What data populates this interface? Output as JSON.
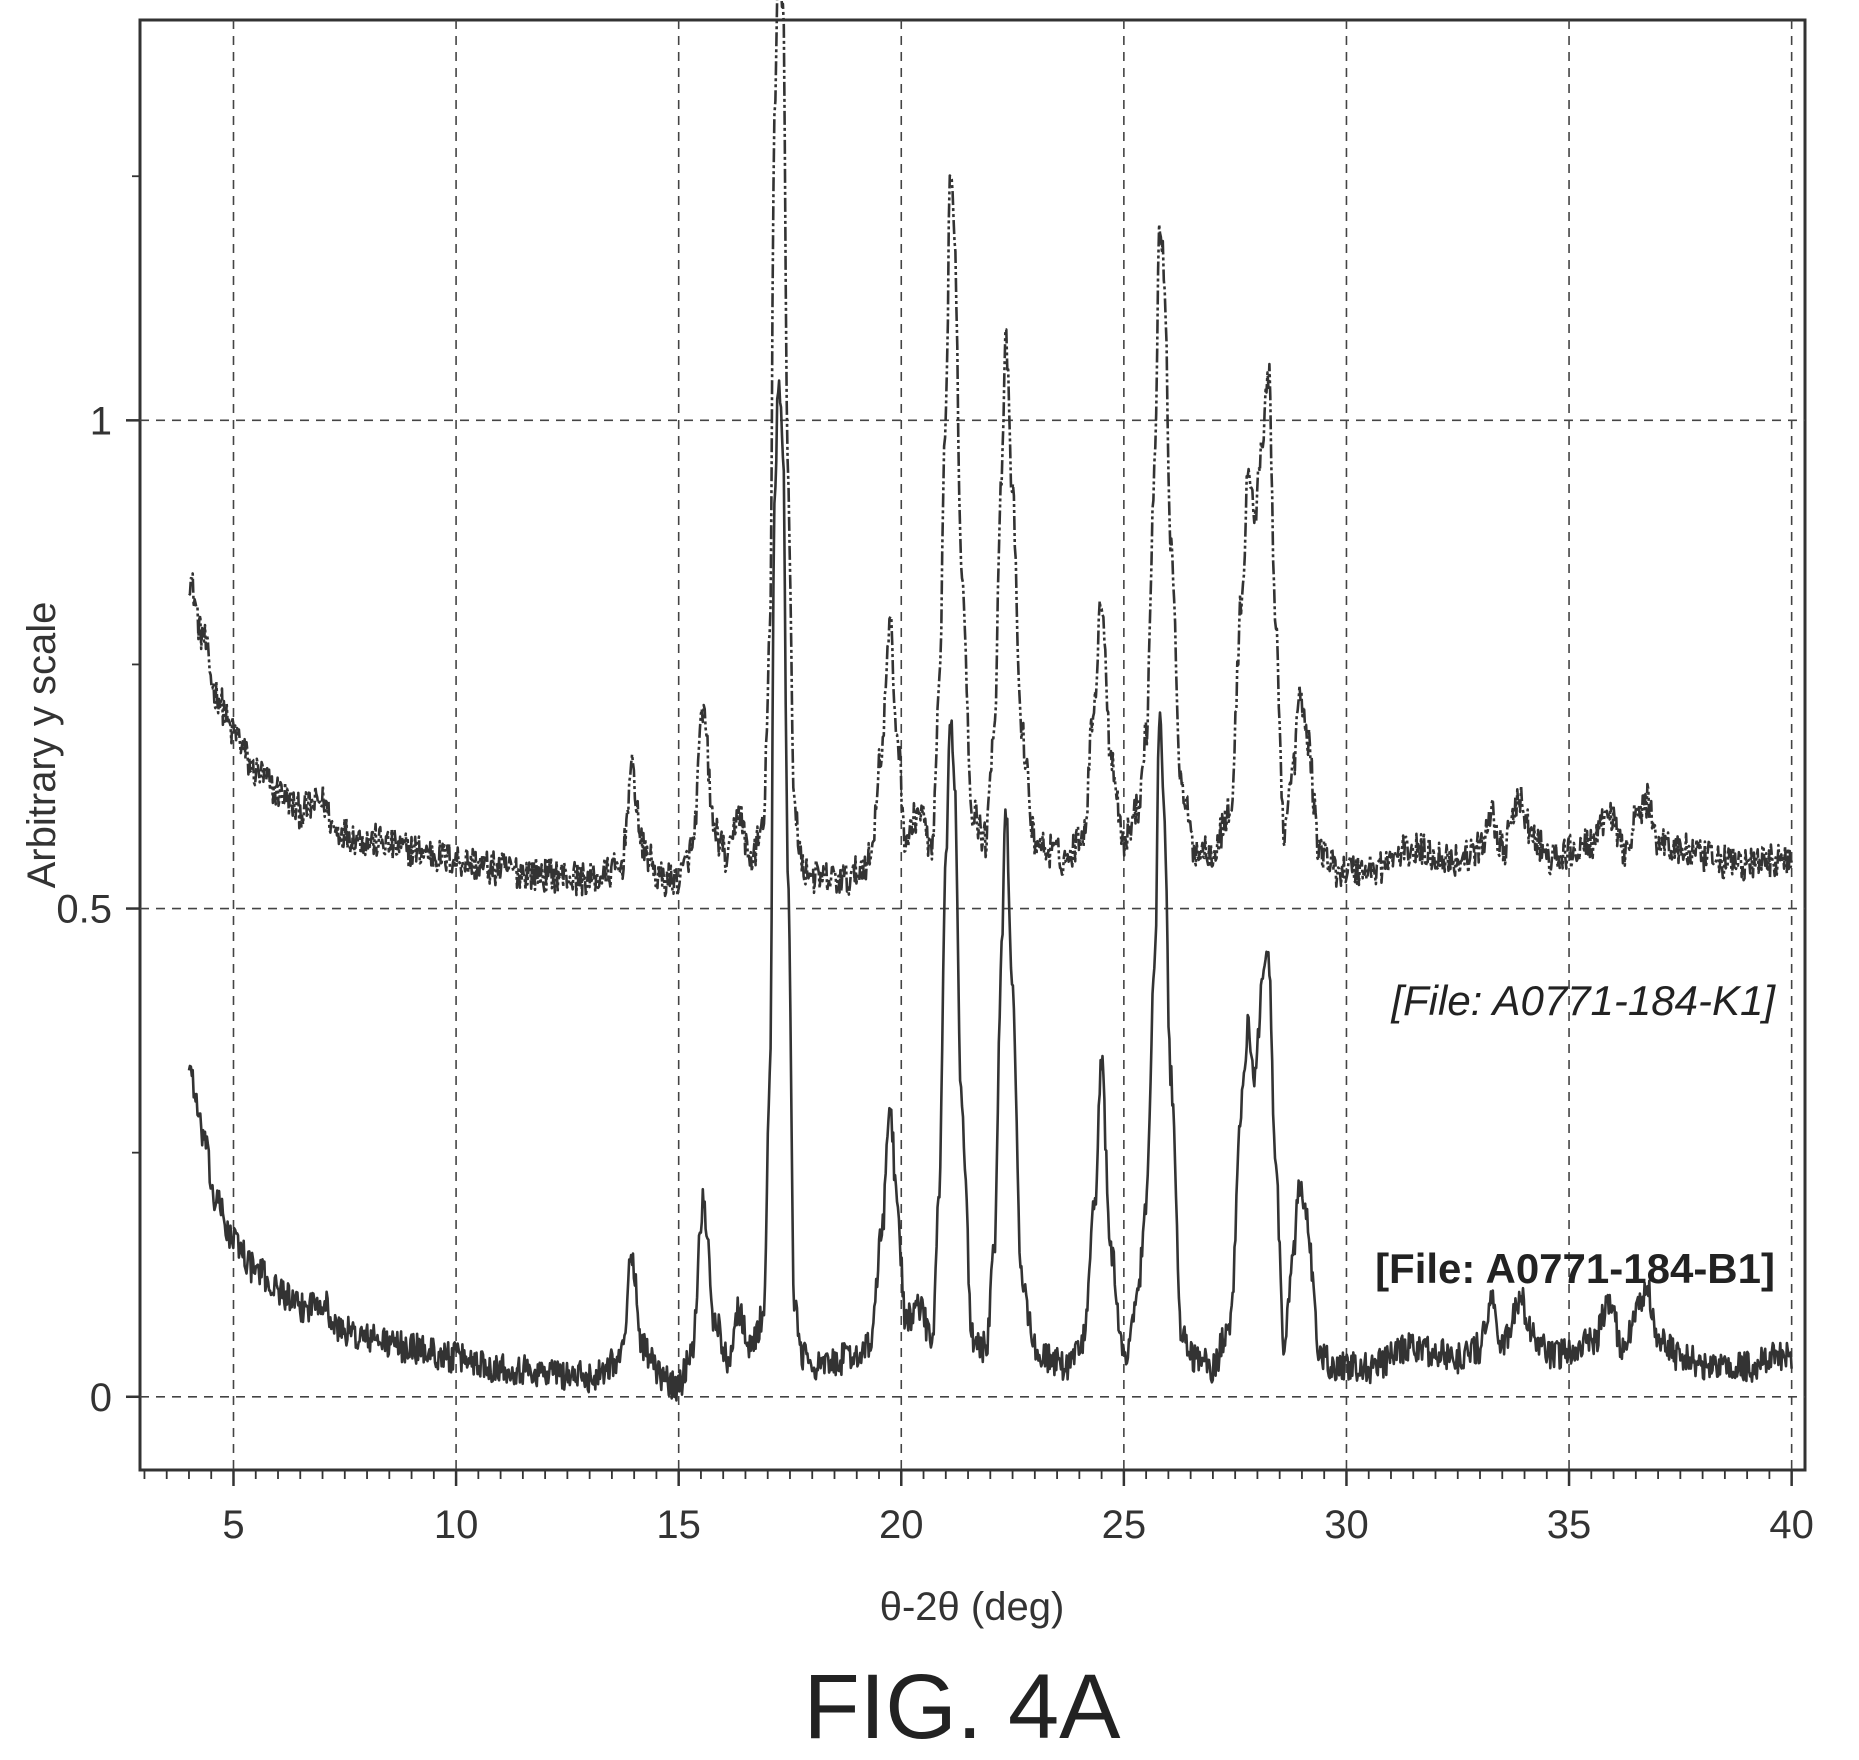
{
  "figure_title": "FIG. 4A",
  "chart_data": {
    "type": "line",
    "title": "",
    "xlabel": "θ-2θ (deg)",
    "ylabel": "Arbitrary y scale",
    "xlim": [
      2.9,
      40.3
    ],
    "ylim": [
      -0.075,
      1.41
    ],
    "x_ticks": [
      5,
      10,
      15,
      20,
      25,
      30,
      35,
      40
    ],
    "y_ticks": [
      0,
      0.5,
      1
    ],
    "x_minor_step": 0.5,
    "y_minor_ticks": [
      0.25,
      0.75,
      1.25
    ],
    "grid": "dashed",
    "colors": {
      "series": "#333333",
      "grid": "#444444",
      "axis": "#333333"
    },
    "series": [
      {
        "name": "[File: A0771-184-K1]",
        "line_style": "dash-dot-dot",
        "label_style": "italic",
        "baseline_offset": 0.5,
        "noise_amplitude": 0.018,
        "x": [
          4.0,
          4.3,
          4.6,
          5.0,
          5.5,
          6.0,
          6.5,
          7.0,
          7.3,
          8.0,
          9.0,
          10.0,
          11.0,
          12.0,
          13.0,
          13.7,
          13.95,
          14.2,
          14.6,
          15.0,
          15.3,
          15.55,
          15.8,
          16.1,
          16.35,
          16.6,
          16.9,
          17.05,
          17.15,
          17.25,
          17.35,
          17.45,
          17.6,
          17.8,
          18.2,
          18.8,
          19.3,
          19.55,
          19.75,
          19.9,
          20.1,
          20.4,
          20.7,
          20.85,
          21.0,
          21.1,
          21.2,
          21.35,
          21.6,
          21.9,
          22.1,
          22.25,
          22.35,
          22.5,
          22.7,
          23.0,
          23.3,
          23.7,
          24.1,
          24.35,
          24.5,
          24.7,
          25.0,
          25.3,
          25.5,
          25.7,
          25.8,
          25.9,
          26.05,
          26.3,
          26.6,
          27.0,
          27.4,
          27.65,
          27.8,
          27.95,
          28.1,
          28.25,
          28.4,
          28.6,
          28.8,
          28.95,
          29.1,
          29.4,
          29.8,
          30.5,
          31.5,
          32.5,
          33.0,
          33.25,
          33.5,
          33.9,
          34.2,
          34.6,
          35.2,
          35.6,
          35.9,
          36.2,
          36.6,
          36.75,
          37.0,
          37.5,
          38.2,
          39.0,
          39.6,
          40.0
        ],
        "y": [
          0.84,
          0.78,
          0.72,
          0.68,
          0.64,
          0.62,
          0.6,
          0.61,
          0.58,
          0.57,
          0.56,
          0.55,
          0.54,
          0.535,
          0.53,
          0.54,
          0.64,
          0.56,
          0.53,
          0.53,
          0.56,
          0.7,
          0.58,
          0.55,
          0.6,
          0.55,
          0.58,
          0.78,
          1.3,
          1.49,
          1.42,
          0.95,
          0.6,
          0.54,
          0.53,
          0.53,
          0.55,
          0.66,
          0.79,
          0.68,
          0.57,
          0.6,
          0.56,
          0.72,
          1.0,
          1.26,
          1.18,
          0.85,
          0.6,
          0.57,
          0.7,
          0.95,
          1.08,
          0.92,
          0.68,
          0.57,
          0.56,
          0.55,
          0.58,
          0.72,
          0.82,
          0.66,
          0.57,
          0.6,
          0.68,
          0.96,
          1.2,
          1.16,
          0.88,
          0.62,
          0.56,
          0.56,
          0.6,
          0.82,
          0.95,
          0.9,
          0.98,
          1.05,
          0.8,
          0.58,
          0.64,
          0.72,
          0.68,
          0.56,
          0.54,
          0.54,
          0.56,
          0.55,
          0.56,
          0.6,
          0.56,
          0.61,
          0.57,
          0.55,
          0.56,
          0.57,
          0.6,
          0.56,
          0.6,
          0.61,
          0.57,
          0.56,
          0.55,
          0.545,
          0.55,
          0.55
        ]
      },
      {
        "name": "[File: A0771-184-B1]",
        "line_style": "solid",
        "label_style": "bold",
        "baseline_offset": 0,
        "noise_amplitude": 0.016,
        "x": [
          4.0,
          4.3,
          4.6,
          5.0,
          5.5,
          6.0,
          6.5,
          7.0,
          7.3,
          8.0,
          9.0,
          10.0,
          11.0,
          12.0,
          13.0,
          13.7,
          13.95,
          14.2,
          14.6,
          15.0,
          15.3,
          15.55,
          15.8,
          16.1,
          16.35,
          16.6,
          16.9,
          17.05,
          17.15,
          17.25,
          17.35,
          17.45,
          17.6,
          17.8,
          18.2,
          18.8,
          19.3,
          19.55,
          19.75,
          19.9,
          20.1,
          20.4,
          20.7,
          20.85,
          21.0,
          21.1,
          21.2,
          21.35,
          21.6,
          21.9,
          22.1,
          22.25,
          22.35,
          22.5,
          22.7,
          23.0,
          23.3,
          23.7,
          24.1,
          24.35,
          24.5,
          24.7,
          25.0,
          25.3,
          25.5,
          25.7,
          25.8,
          25.9,
          26.05,
          26.3,
          26.6,
          27.0,
          27.4,
          27.65,
          27.8,
          27.95,
          28.1,
          28.25,
          28.4,
          28.6,
          28.8,
          28.95,
          29.1,
          29.4,
          29.8,
          30.5,
          31.5,
          32.5,
          33.0,
          33.25,
          33.5,
          33.9,
          34.2,
          34.6,
          35.2,
          35.6,
          35.9,
          36.2,
          36.6,
          36.75,
          37.0,
          37.5,
          38.2,
          39.0,
          39.6,
          40.0
        ],
        "y": [
          0.34,
          0.27,
          0.2,
          0.16,
          0.13,
          0.11,
          0.09,
          0.1,
          0.07,
          0.06,
          0.05,
          0.04,
          0.03,
          0.025,
          0.02,
          0.04,
          0.14,
          0.05,
          0.02,
          0.01,
          0.05,
          0.2,
          0.08,
          0.04,
          0.09,
          0.05,
          0.08,
          0.32,
          0.9,
          1.05,
          0.95,
          0.55,
          0.09,
          0.04,
          0.03,
          0.04,
          0.05,
          0.16,
          0.3,
          0.2,
          0.08,
          0.09,
          0.06,
          0.2,
          0.55,
          0.7,
          0.62,
          0.3,
          0.06,
          0.05,
          0.16,
          0.45,
          0.6,
          0.42,
          0.12,
          0.05,
          0.04,
          0.03,
          0.06,
          0.2,
          0.34,
          0.15,
          0.04,
          0.1,
          0.2,
          0.45,
          0.7,
          0.6,
          0.33,
          0.06,
          0.04,
          0.03,
          0.08,
          0.3,
          0.38,
          0.33,
          0.42,
          0.45,
          0.24,
          0.05,
          0.14,
          0.22,
          0.18,
          0.04,
          0.03,
          0.03,
          0.05,
          0.04,
          0.05,
          0.1,
          0.05,
          0.1,
          0.06,
          0.04,
          0.05,
          0.06,
          0.1,
          0.05,
          0.1,
          0.11,
          0.06,
          0.04,
          0.03,
          0.03,
          0.04,
          0.04
        ]
      }
    ]
  }
}
